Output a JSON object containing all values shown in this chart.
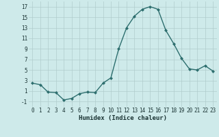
{
  "x": [
    0,
    1,
    2,
    3,
    4,
    5,
    6,
    7,
    8,
    9,
    10,
    11,
    12,
    13,
    14,
    15,
    16,
    17,
    18,
    19,
    20,
    21,
    22,
    23
  ],
  "y": [
    2.5,
    2.2,
    0.8,
    0.7,
    -0.7,
    -0.4,
    0.5,
    0.8,
    0.7,
    2.5,
    3.5,
    9.0,
    13.0,
    15.2,
    16.5,
    17.0,
    16.5,
    12.5,
    10.0,
    7.2,
    5.2,
    5.0,
    5.8,
    4.8
  ],
  "title": "",
  "xlabel": "Humidex (Indice chaleur)",
  "ylabel": "",
  "xlim": [
    -0.5,
    23.5
  ],
  "ylim": [
    -2,
    18
  ],
  "yticks": [
    -1,
    1,
    3,
    5,
    7,
    9,
    11,
    13,
    15,
    17
  ],
  "xticks": [
    0,
    1,
    2,
    3,
    4,
    5,
    6,
    7,
    8,
    9,
    10,
    11,
    12,
    13,
    14,
    15,
    16,
    17,
    18,
    19,
    20,
    21,
    22,
    23
  ],
  "line_color": "#2d6e6e",
  "marker": "D",
  "marker_size": 2.0,
  "line_width": 1.0,
  "bg_color": "#ceeaea",
  "grid_color": "#b0cccc",
  "font_color": "#1a3333",
  "tick_fontsize": 5.5,
  "xlabel_fontsize": 6.5
}
